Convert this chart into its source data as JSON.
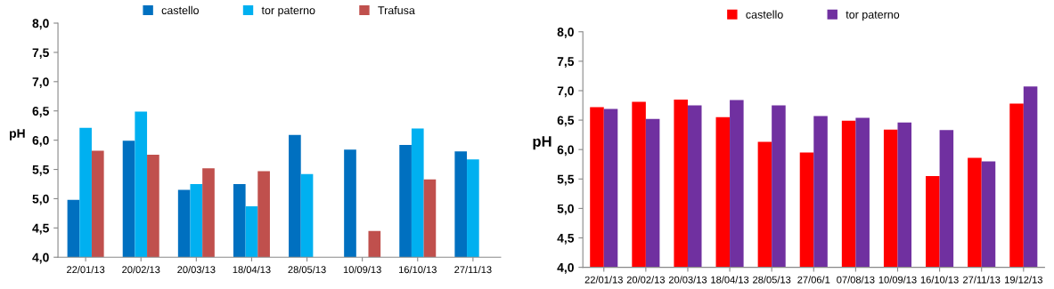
{
  "chart_data": [
    {
      "type": "bar",
      "ylabel": "pH",
      "categories": [
        "22/01/13",
        "20/02/13",
        "20/03/13",
        "18/04/13",
        "28/05/13",
        "10/09/13",
        "16/10/13",
        "27/11/13"
      ],
      "series": [
        {
          "name": "castello",
          "color": "#0070c0",
          "values": [
            4.98,
            5.99,
            5.15,
            5.25,
            6.09,
            5.84,
            5.92,
            5.81
          ]
        },
        {
          "name": "tor paterno",
          "color": "#00b0f0",
          "values": [
            6.21,
            6.49,
            5.25,
            4.87,
            5.42,
            null,
            6.2,
            5.67
          ]
        },
        {
          "name": "Trafusa",
          "color": "#c0504d",
          "values": [
            5.82,
            5.75,
            5.52,
            5.47,
            null,
            4.45,
            5.33,
            null
          ]
        }
      ],
      "ylim": [
        4,
        8
      ],
      "yticks": [
        {
          "value": 4,
          "label": "4,0"
        },
        {
          "value": 4.5,
          "label": "4,5"
        },
        {
          "value": 5,
          "label": "5,0"
        },
        {
          "value": 5.5,
          "label": "5,5"
        },
        {
          "value": 6,
          "label": "6,0"
        },
        {
          "value": 6.5,
          "label": "6,5"
        },
        {
          "value": 7,
          "label": "7,0"
        },
        {
          "value": 7.5,
          "label": "7,5"
        },
        {
          "value": 8,
          "label": "8,0"
        }
      ],
      "grid": false,
      "legend": "top"
    },
    {
      "type": "bar",
      "ylabel": "pH",
      "categories": [
        "22/01/13",
        "20/02/13",
        "20/03/13",
        "18/04/13",
        "28/05/13",
        "27/06/1",
        "07/08/13",
        "10/09/13",
        "16/10/13",
        "27/11/13",
        "19/12/13"
      ],
      "series": [
        {
          "name": "castello",
          "color": "#ff0000",
          "values": [
            6.72,
            6.81,
            6.85,
            6.55,
            6.13,
            5.95,
            6.49,
            6.34,
            5.55,
            5.86,
            6.78
          ]
        },
        {
          "name": "tor paterno",
          "color": "#7030a0",
          "values": [
            6.69,
            6.52,
            6.75,
            6.84,
            6.75,
            6.57,
            6.54,
            6.46,
            6.33,
            5.8,
            7.07
          ]
        }
      ],
      "ylim": [
        4,
        8
      ],
      "yticks": [
        {
          "value": 4,
          "label": "4,0"
        },
        {
          "value": 4.5,
          "label": "4,5"
        },
        {
          "value": 5,
          "label": "5,0"
        },
        {
          "value": 5.5,
          "label": "5,5"
        },
        {
          "value": 6,
          "label": "6,0"
        },
        {
          "value": 6.5,
          "label": "6,5"
        },
        {
          "value": 7,
          "label": "7,0"
        },
        {
          "value": 7.5,
          "label": "7,5"
        },
        {
          "value": 8,
          "label": "8,0"
        }
      ],
      "grid": false,
      "legend": "top"
    }
  ]
}
